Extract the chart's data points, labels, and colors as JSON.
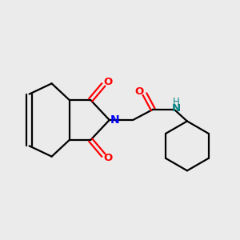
{
  "bg_color": "#ebebeb",
  "bond_color": "#000000",
  "N_color": "#0000ff",
  "O_color": "#ff0000",
  "NH_color": "#008080",
  "figsize": [
    3.0,
    3.0
  ],
  "dpi": 100,
  "xlim": [
    0,
    10
  ],
  "ylim": [
    0,
    10
  ]
}
